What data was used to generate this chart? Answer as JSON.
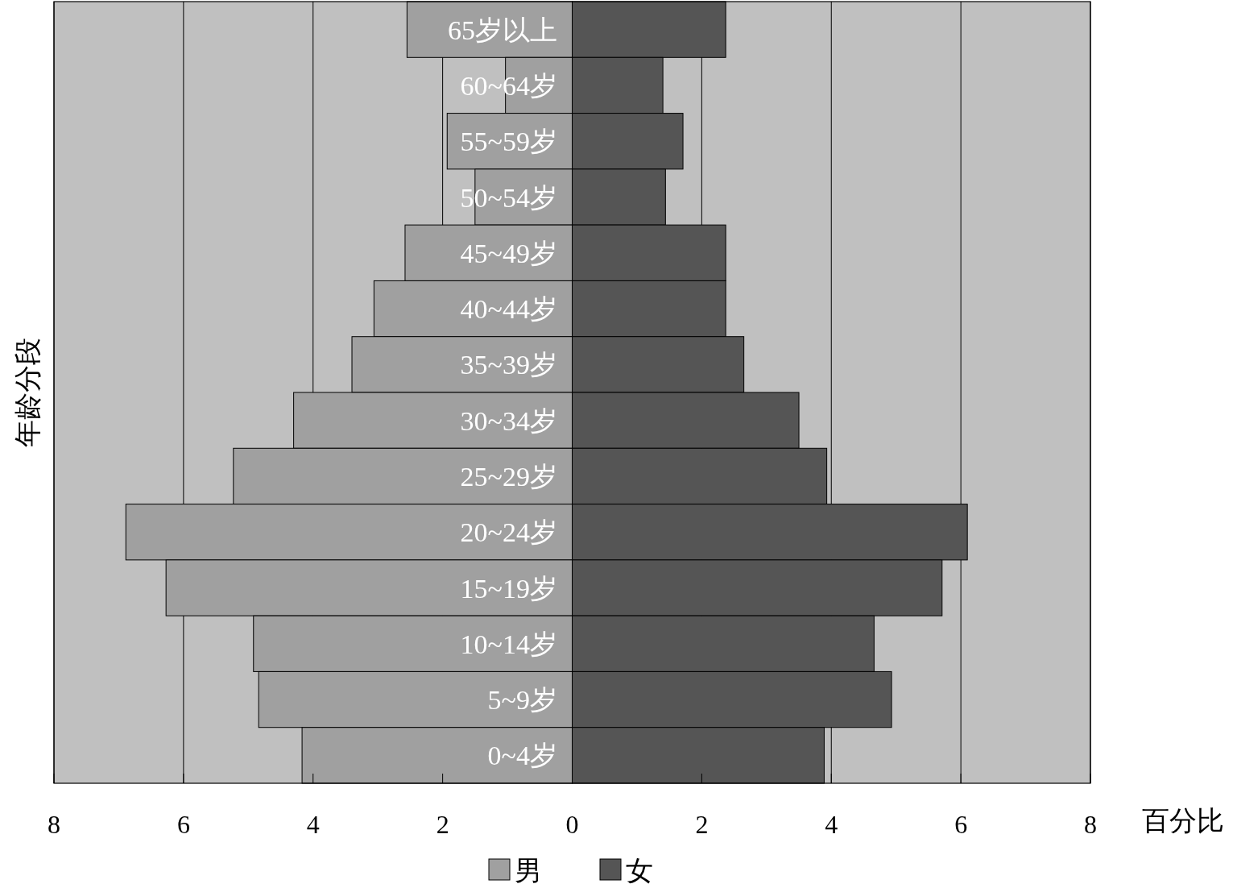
{
  "chart_data": {
    "type": "bar",
    "orientation": "horizontal",
    "stacked": true,
    "ylabel": "年龄分段",
    "xlabel": "百分比",
    "categories": [
      "65岁以上",
      "60~64岁",
      "55~59岁",
      "50~54岁",
      "45~49岁",
      "40~44岁",
      "35~39岁",
      "30~34岁",
      "25~29岁",
      "20~24岁",
      "15~19岁",
      "10~14岁",
      "5~9岁",
      "0~4岁"
    ],
    "series": [
      {
        "name": "男",
        "color": "#a0a0a0",
        "values": [
          -2.55,
          -1.03,
          -1.93,
          -1.5,
          -2.58,
          -3.06,
          -3.4,
          -4.3,
          -5.23,
          -6.89,
          -6.27,
          -4.92,
          -4.84,
          -4.17
        ]
      },
      {
        "name": "女",
        "color": "#555555",
        "values": [
          2.37,
          1.4,
          1.71,
          1.44,
          2.37,
          2.37,
          2.65,
          3.5,
          3.93,
          6.1,
          5.71,
          4.66,
          4.93,
          3.89
        ]
      }
    ],
    "xlim": [
      -8,
      8
    ],
    "xticks": [
      {
        "value": -8,
        "label": "8"
      },
      {
        "value": -6,
        "label": "6"
      },
      {
        "value": -4,
        "label": "4"
      },
      {
        "value": -2,
        "label": "2"
      },
      0,
      2,
      4,
      6,
      8
    ],
    "grid": "x",
    "legend": "bottom"
  }
}
